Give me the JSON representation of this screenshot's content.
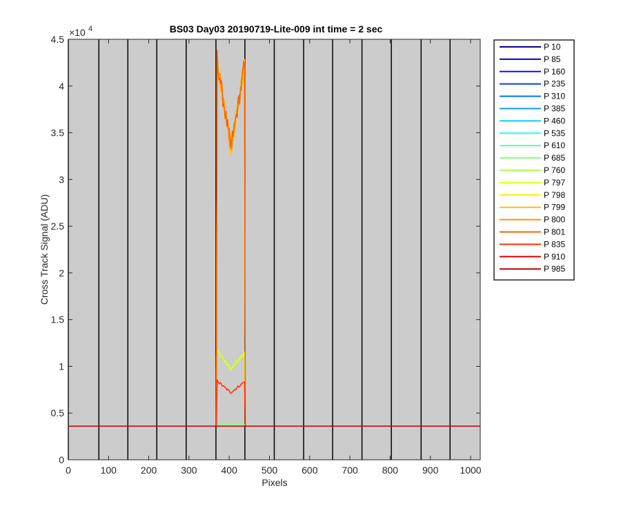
{
  "chart_data": {
    "type": "line",
    "title": "BS03 Day03 20190719-Lite-009 int time = 2 sec",
    "xlabel": "Pixels",
    "ylabel": "Cross Track Signal (ADU)",
    "exponent_label": "×10",
    "exponent_power": "4",
    "xlim": [
      0,
      1024
    ],
    "ylim": [
      0,
      45000
    ],
    "x_ticks": [
      "0",
      "100",
      "200",
      "300",
      "400",
      "500",
      "600",
      "700",
      "800",
      "900",
      "1000"
    ],
    "y_ticks": [
      "0",
      "0.5",
      "1",
      "1.5",
      "2",
      "2.5",
      "3",
      "3.5",
      "4",
      "4.5"
    ],
    "y_tick_values": [
      0,
      5000,
      10000,
      15000,
      20000,
      25000,
      30000,
      35000,
      40000,
      45000
    ],
    "background_color": "#cccccc",
    "vertical_lines_x": [
      0,
      76,
      148,
      220,
      293,
      367,
      439,
      512,
      585,
      657,
      730,
      803,
      877,
      949
    ],
    "baseline": 3600,
    "signal_range": [
      370,
      438
    ],
    "series": [
      {
        "name": "P 10",
        "color": "#00008f",
        "level": "none"
      },
      {
        "name": "P 85",
        "color": "#0000c8",
        "level": "none"
      },
      {
        "name": "P 160",
        "color": "#0010ff",
        "level": "none"
      },
      {
        "name": "P 235",
        "color": "#0040ff",
        "level": "none"
      },
      {
        "name": "P 310",
        "color": "#0070ff",
        "level": "none"
      },
      {
        "name": "P 385",
        "color": "#00a0ff",
        "level": "none"
      },
      {
        "name": "P 460",
        "color": "#00d0ff",
        "level": "none"
      },
      {
        "name": "P 535",
        "color": "#20ffdf",
        "level": "none"
      },
      {
        "name": "P 610",
        "color": "#50ffaf",
        "level": "none"
      },
      {
        "name": "P 685",
        "color": "#80ff80",
        "level": "low"
      },
      {
        "name": "P 760",
        "color": "#afff50",
        "level": "mid"
      },
      {
        "name": "P 797",
        "color": "#dfff20",
        "level": "mid"
      },
      {
        "name": "P 798",
        "color": "#ffef00",
        "level": "high"
      },
      {
        "name": "P 799",
        "color": "#ffbf00",
        "level": "high"
      },
      {
        "name": "P 800",
        "color": "#ff9000",
        "level": "high"
      },
      {
        "name": "P 801",
        "color": "#ff6000",
        "level": "high"
      },
      {
        "name": "P 835",
        "color": "#ff3000",
        "level": "mid2"
      },
      {
        "name": "P 910",
        "color": "#ef0000",
        "level": "none"
      },
      {
        "name": "P 985",
        "color": "#bf0000",
        "level": "none"
      }
    ],
    "profiles": {
      "high": {
        "left_peak": 43000,
        "valley": 33500,
        "right_peak": 42500
      },
      "mid": {
        "left_peak": 11800,
        "valley": 9700,
        "right_peak": 11500
      },
      "mid2": {
        "left_peak": 8500,
        "valley": 7200,
        "right_peak": 8400
      },
      "low": {
        "left_peak": 3800,
        "valley": 3750,
        "right_peak": 3800
      }
    },
    "legend_position": "outside-right"
  }
}
